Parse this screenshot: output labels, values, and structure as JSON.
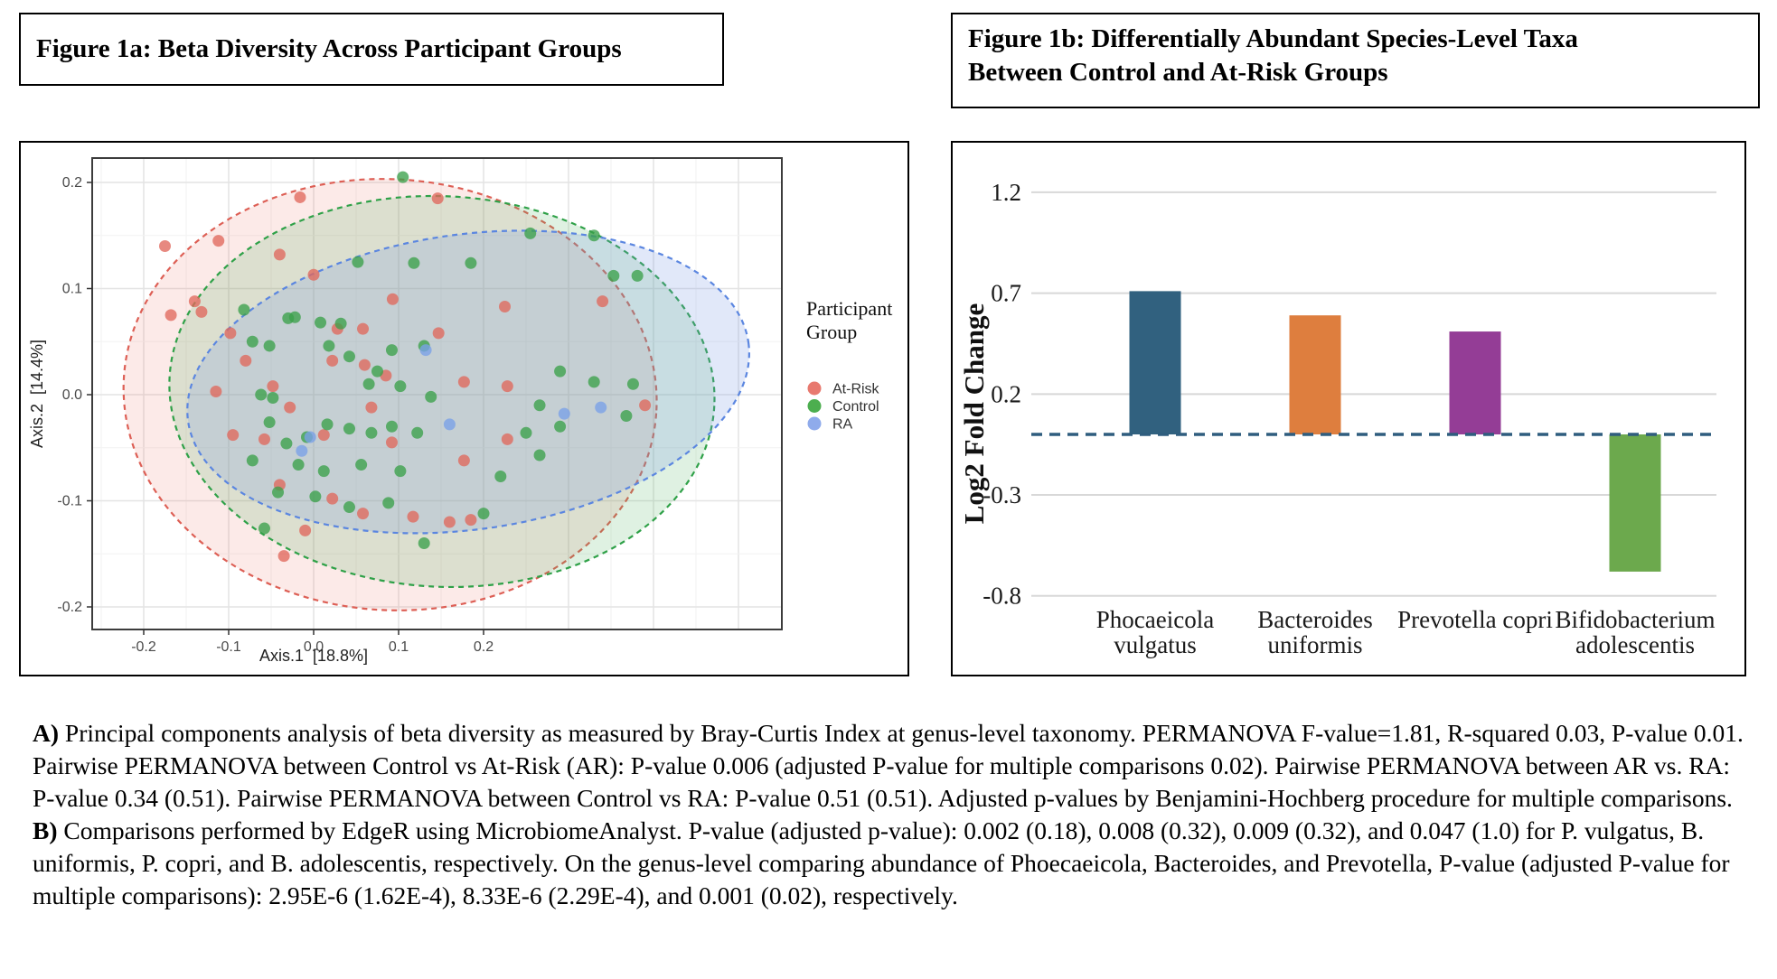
{
  "figure_a": {
    "title": "Figure 1a: Beta Diversity Across Participant Groups"
  },
  "figure_b": {
    "title_lines": [
      "Figure 1b: Differentially Abundant Species-Level Taxa",
      "Between Control and At-Risk Groups"
    ]
  },
  "caption": {
    "a_label": "A)",
    "a_text": "Principal components analysis of beta diversity as measured by Bray-Curtis Index at genus-level taxonomy. PERMANOVA F-value=1.81, R-squared 0.03, P-value 0.01. Pairwise PERMANOVA between Control vs At-Risk (AR): P-value 0.006 (adjusted P-value for multiple comparisons 0.02). Pairwise PERMANOVA between AR vs. RA: P-value 0.34 (0.51). Pairwise PERMANOVA between Control vs RA: P-value 0.51 (0.51). Adjusted p-values by Benjamini-Hochberg procedure for multiple comparisons.",
    "b_label": "B)",
    "b_text": "Comparisons performed by EdgeR using MicrobiomeAnalyst. P-value (adjusted p-value): 0.002 (0.18), 0.008 (0.32), 0.009 (0.32), and 0.047 (1.0) for P. vulgatus, B. uniformis, P. copri, and B. adolescentis, respectively. On the genus-level comparing abundance of Phoecaeicola, Bacteroides, and Prevotella, P-value (adjusted P-value for multiple comparisons): 2.95E-6 (1.62E-4), 8.33E-6 (2.29E-4), and 0.001 (0.02), respectively."
  },
  "chart_data": [
    {
      "id": "pcoa-scatter",
      "type": "scatter",
      "title": "Figure 1a: Beta Diversity Across Participant Groups",
      "xlabel": "Axis.1  [18.8%]",
      "ylabel": "Axis.2  [14.4%]",
      "xticks": [
        "-0.2",
        "-0.1",
        "0.0",
        "0.1",
        "0.2"
      ],
      "xtick_values": [
        -0.2,
        -0.1,
        0.0,
        0.1,
        0.2
      ],
      "yticks": [
        "0.2",
        "0.1",
        "0.0",
        "-0.1",
        "-0.2"
      ],
      "ytick_values": [
        0.2,
        0.1,
        0.0,
        -0.1,
        -0.2
      ],
      "xlim": [
        -0.261,
        0.551
      ],
      "ylim": [
        -0.223,
        0.223
      ],
      "grid": true,
      "legend": {
        "title_lines": [
          "Participant",
          "Group"
        ],
        "position": "right",
        "items": [
          {
            "label": "At-Risk",
            "color": "#E8796F"
          },
          {
            "label": "Control",
            "color": "#4CAE4F"
          },
          {
            "label": "RA",
            "color": "#8FABEB"
          }
        ]
      },
      "ellipses": [
        {
          "group": "At-Risk",
          "cx": 0.09,
          "cy": 0.0,
          "rx": 0.314,
          "ry": 0.203,
          "rot": 4,
          "stroke": "#DD5F55",
          "fill": "rgba(232,112,102,0.15)"
        },
        {
          "group": "Control",
          "cx": 0.151,
          "cy": 0.003,
          "rx": 0.321,
          "ry": 0.184,
          "rot": 3,
          "stroke": "#2FA148",
          "fill": "rgba(80,175,95,0.18)"
        },
        {
          "group": "RA",
          "cx": 0.182,
          "cy": 0.012,
          "rx": 0.333,
          "ry": 0.139,
          "rot": -8,
          "stroke": "#5B86E0",
          "fill": "rgba(120,152,228,0.22)"
        }
      ],
      "series": [
        {
          "name": "At-Risk",
          "color": "#E0685C",
          "points": [
            [
              -0.175,
              0.14
            ],
            [
              -0.168,
              0.075
            ],
            [
              -0.14,
              0.088
            ],
            [
              -0.132,
              0.078
            ],
            [
              -0.112,
              0.145
            ],
            [
              -0.016,
              0.186
            ],
            [
              0.146,
              0.185
            ],
            [
              -0.04,
              0.132
            ],
            [
              0.0,
              0.113
            ],
            [
              0.093,
              0.09
            ],
            [
              -0.098,
              0.058
            ],
            [
              -0.08,
              0.032
            ],
            [
              0.028,
              0.062
            ],
            [
              0.058,
              0.062
            ],
            [
              0.147,
              0.058
            ],
            [
              0.225,
              0.083
            ],
            [
              0.34,
              0.088
            ],
            [
              -0.115,
              0.003
            ],
            [
              0.022,
              0.032
            ],
            [
              0.06,
              0.028
            ],
            [
              0.085,
              0.018
            ],
            [
              -0.048,
              0.008
            ],
            [
              0.177,
              0.012
            ],
            [
              0.228,
              0.008
            ],
            [
              -0.028,
              -0.012
            ],
            [
              0.068,
              -0.012
            ],
            [
              0.39,
              -0.01
            ],
            [
              -0.095,
              -0.038
            ],
            [
              -0.058,
              -0.042
            ],
            [
              0.012,
              -0.038
            ],
            [
              0.092,
              -0.045
            ],
            [
              0.177,
              -0.062
            ],
            [
              0.228,
              -0.042
            ],
            [
              -0.04,
              -0.085
            ],
            [
              0.022,
              -0.098
            ],
            [
              0.058,
              -0.112
            ],
            [
              0.117,
              -0.115
            ],
            [
              -0.01,
              -0.128
            ],
            [
              -0.035,
              -0.152
            ],
            [
              0.16,
              -0.12
            ],
            [
              0.185,
              -0.118
            ]
          ]
        },
        {
          "name": "Control",
          "color": "#3BA04A",
          "points": [
            [
              0.105,
              0.205
            ],
            [
              0.255,
              0.152
            ],
            [
              0.33,
              0.15
            ],
            [
              0.353,
              0.112
            ],
            [
              0.381,
              0.112
            ],
            [
              0.052,
              0.125
            ],
            [
              0.118,
              0.124
            ],
            [
              0.185,
              0.124
            ],
            [
              -0.082,
              0.08
            ],
            [
              -0.072,
              0.05
            ],
            [
              -0.052,
              0.046
            ],
            [
              -0.03,
              0.072
            ],
            [
              -0.022,
              0.073
            ],
            [
              0.008,
              0.068
            ],
            [
              0.032,
              0.067
            ],
            [
              0.018,
              0.046
            ],
            [
              0.042,
              0.036
            ],
            [
              0.092,
              0.042
            ],
            [
              0.13,
              0.046
            ],
            [
              0.075,
              0.022
            ],
            [
              0.29,
              0.022
            ],
            [
              0.33,
              0.012
            ],
            [
              0.376,
              0.01
            ],
            [
              -0.062,
              0.0
            ],
            [
              -0.048,
              -0.003
            ],
            [
              0.065,
              0.01
            ],
            [
              0.102,
              0.008
            ],
            [
              0.138,
              -0.002
            ],
            [
              0.266,
              -0.01
            ],
            [
              0.368,
              -0.02
            ],
            [
              -0.052,
              -0.026
            ],
            [
              -0.032,
              -0.046
            ],
            [
              -0.008,
              -0.04
            ],
            [
              0.016,
              -0.028
            ],
            [
              0.042,
              -0.032
            ],
            [
              0.068,
              -0.036
            ],
            [
              0.092,
              -0.03
            ],
            [
              0.122,
              -0.036
            ],
            [
              0.25,
              -0.036
            ],
            [
              0.29,
              -0.03
            ],
            [
              -0.072,
              -0.062
            ],
            [
              -0.018,
              -0.066
            ],
            [
              0.012,
              -0.072
            ],
            [
              0.056,
              -0.066
            ],
            [
              0.102,
              -0.072
            ],
            [
              0.22,
              -0.077
            ],
            [
              0.266,
              -0.057
            ],
            [
              -0.042,
              -0.092
            ],
            [
              0.002,
              -0.096
            ],
            [
              0.042,
              -0.106
            ],
            [
              0.088,
              -0.102
            ],
            [
              0.2,
              -0.112
            ],
            [
              -0.058,
              -0.126
            ],
            [
              0.13,
              -0.14
            ]
          ]
        },
        {
          "name": "RA",
          "color": "#7AA0E8",
          "points": [
            [
              0.132,
              0.042
            ],
            [
              0.295,
              -0.018
            ],
            [
              0.338,
              -0.012
            ],
            [
              0.16,
              -0.028
            ],
            [
              -0.004,
              -0.04
            ],
            [
              -0.014,
              -0.053
            ]
          ]
        }
      ]
    },
    {
      "id": "log2fc-bars",
      "type": "bar",
      "title": "Figure 1b: Differentially Abundant Species-Level Taxa Between Control and At-Risk Groups",
      "categories": [
        [
          "Phocaeicola",
          "vulgatus"
        ],
        [
          "Bacteroides",
          "uniformis"
        ],
        [
          "Prevotella copri"
        ],
        [
          "Bifidobacterium",
          "adolescentis"
        ]
      ],
      "values": [
        0.71,
        0.59,
        0.51,
        -0.68
      ],
      "colors": [
        "#31617F",
        "#DE7E3E",
        "#943D96",
        "#6CA94D"
      ],
      "xlabel": "",
      "ylabel": "Log2 Fold Change",
      "yticks": [
        "1.2",
        "0.7",
        "0.2",
        "-0.3",
        "-0.8"
      ],
      "ytick_values": [
        1.2,
        0.7,
        0.2,
        -0.3,
        -0.8
      ],
      "ylim": [
        -1.05,
        1.45
      ],
      "grid": true,
      "gridline_color": "#D8D8D8",
      "zero_line": {
        "value": 0,
        "style": "dashed",
        "color": "#2F5D7E"
      },
      "legend_position": "none"
    }
  ]
}
